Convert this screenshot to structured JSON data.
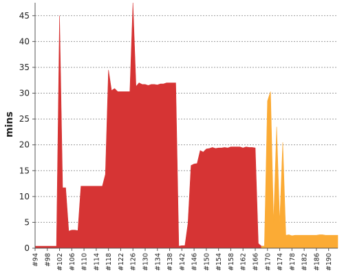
{
  "chart_data": {
    "type": "area",
    "title": "",
    "xlabel": "",
    "ylabel": "mins",
    "ylim": [
      0,
      47.5
    ],
    "yticks": [
      0,
      5,
      10,
      15,
      20,
      25,
      30,
      35,
      40,
      45
    ],
    "grid": true,
    "x_tick_labels": [
      "#94",
      "#98",
      "#102",
      "#106",
      "#110",
      "#114",
      "#118",
      "#122",
      "#126",
      "#130",
      "#134",
      "#138",
      "#142",
      "#146",
      "#150",
      "#154",
      "#158",
      "#162",
      "#166",
      "#170",
      "#174",
      "#178",
      "#182",
      "#186",
      "#190"
    ],
    "x_builds": [
      94,
      95,
      96,
      97,
      98,
      99,
      100,
      101,
      102,
      103,
      104,
      105,
      106,
      107,
      108,
      109,
      110,
      111,
      112,
      113,
      114,
      115,
      116,
      117,
      118,
      119,
      120,
      121,
      122,
      123,
      124,
      125,
      126,
      127,
      128,
      129,
      130,
      131,
      132,
      133,
      134,
      135,
      136,
      137,
      138,
      139,
      140,
      141,
      142,
      143,
      144,
      145,
      146,
      147,
      148,
      149,
      150,
      151,
      152,
      153,
      154,
      155,
      156,
      157,
      158,
      159,
      160,
      161,
      162,
      163,
      164,
      165,
      166,
      167,
      168,
      169,
      170,
      171,
      172,
      173,
      174,
      175,
      176,
      177,
      178,
      179,
      180,
      181,
      182,
      183,
      184,
      185,
      186,
      187,
      188,
      189,
      190,
      191,
      192,
      193
    ],
    "series": [
      {
        "color": "#d63434",
        "values": [
          0.4,
          0.4,
          0.4,
          0.4,
          0.4,
          0.4,
          0.4,
          0.4,
          45,
          11.7,
          11.7,
          3.3,
          3.5,
          3.5,
          3.4,
          12,
          12,
          12,
          12,
          12,
          12,
          12,
          12,
          14.3,
          34.5,
          30.5,
          30.9,
          30.3,
          30.3,
          30.3,
          30.3,
          30.3,
          48,
          31.3,
          32,
          31.7,
          31.7,
          31.5,
          31.7,
          31.7,
          31.6,
          31.8,
          31.8,
          32,
          32,
          32,
          32,
          0.4,
          0.5,
          0.5,
          4.8,
          16,
          16.3,
          16.4,
          18.9,
          18.6,
          19.2,
          19.3,
          19.5,
          19.3,
          19.4,
          19.4,
          19.5,
          19.4,
          19.6,
          19.6,
          19.6,
          19.6,
          19.4,
          19.6,
          19.5,
          19.5,
          19.4,
          0.9,
          0.4,
          0.4,
          null,
          null,
          null,
          null,
          null,
          null,
          null,
          null,
          null,
          null,
          null,
          null,
          null,
          null,
          null,
          null,
          null,
          null,
          null,
          null,
          null,
          null,
          null,
          null
        ]
      },
      {
        "color": "#fbab35",
        "values": [
          null,
          null,
          null,
          null,
          null,
          null,
          null,
          null,
          null,
          null,
          null,
          null,
          null,
          null,
          null,
          null,
          null,
          null,
          null,
          null,
          null,
          null,
          null,
          null,
          null,
          null,
          null,
          null,
          null,
          null,
          null,
          null,
          null,
          null,
          null,
          null,
          null,
          null,
          null,
          null,
          null,
          null,
          null,
          null,
          null,
          null,
          null,
          null,
          null,
          null,
          null,
          null,
          null,
          null,
          null,
          null,
          null,
          null,
          null,
          null,
          null,
          null,
          null,
          null,
          null,
          null,
          null,
          null,
          null,
          null,
          null,
          null,
          null,
          null,
          0.4,
          0.4,
          28.5,
          30.3,
          5,
          23.5,
          5,
          20.5,
          2.5,
          2.6,
          2.4,
          2.5,
          2.5,
          2.5,
          2.5,
          2.5,
          2.5,
          2.5,
          2.5,
          2.6,
          2.6,
          2.5,
          2.5,
          2.5,
          2.5,
          2.5
        ]
      }
    ]
  }
}
